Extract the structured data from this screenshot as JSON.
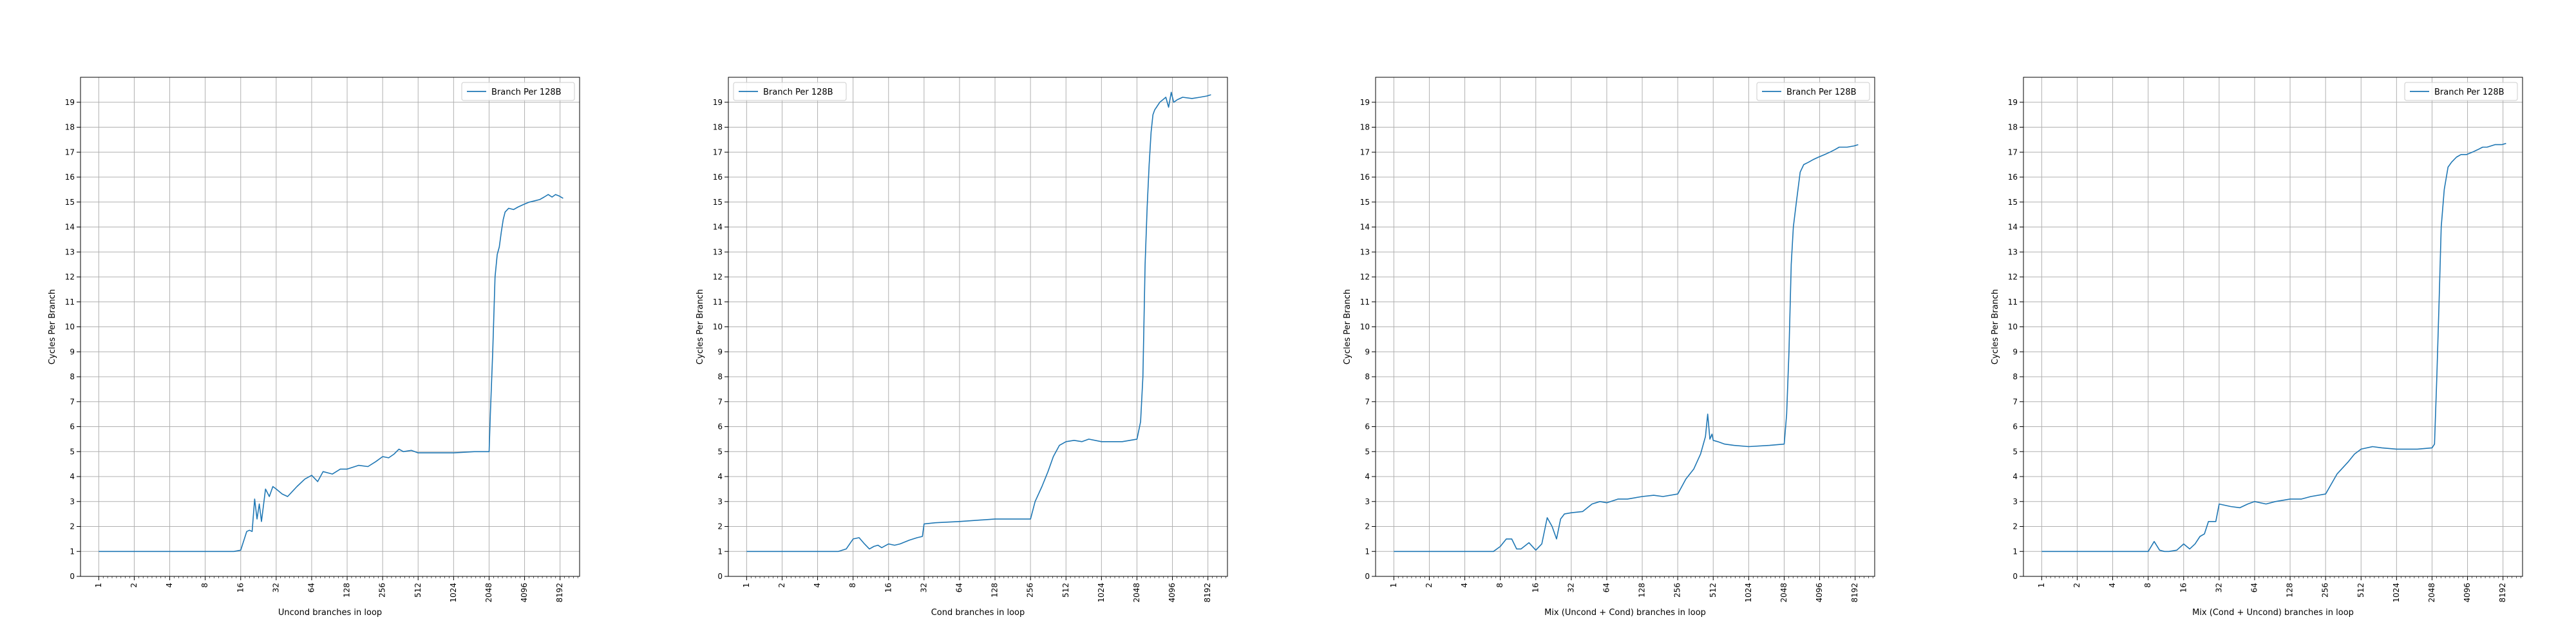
{
  "figure": {
    "background": "#ffffff",
    "line_color": "#1f77b4",
    "grid_color": "#b0b0b0"
  },
  "chart_data": [
    {
      "type": "line",
      "xscale": "log2",
      "xlabel": "Uncond branches in loop",
      "ylabel": "Cycles Per Branch",
      "xticks": [
        1,
        2,
        4,
        8,
        16,
        32,
        64,
        128,
        256,
        512,
        1024,
        2048,
        4096,
        8192
      ],
      "xlim": [
        0.7,
        12000
      ],
      "ylim": [
        0,
        20
      ],
      "yticks": [
        0,
        1,
        2,
        3,
        4,
        5,
        6,
        7,
        8,
        9,
        10,
        11,
        12,
        13,
        14,
        15,
        16,
        17,
        18,
        19
      ],
      "grid": true,
      "legend_position": "top-right",
      "series": [
        {
          "name": "Branch Per 128B",
          "x": [
            1,
            8,
            14,
            16,
            18,
            19,
            20,
            21,
            22,
            23,
            24,
            26,
            28,
            30,
            32,
            36,
            40,
            48,
            56,
            64,
            72,
            80,
            96,
            112,
            128,
            160,
            192,
            224,
            256,
            288,
            320,
            352,
            384,
            448,
            512,
            640,
            768,
            1024,
            1536,
            2048,
            2100,
            2200,
            2300,
            2400,
            2500,
            2600,
            2700,
            2800,
            3000,
            3300,
            3600,
            4000,
            4500,
            5000,
            5500,
            6000,
            6500,
            7000,
            7500,
            8000,
            8700
          ],
          "y": [
            1.0,
            1.0,
            1.0,
            1.05,
            1.8,
            1.85,
            1.8,
            3.1,
            2.3,
            2.9,
            2.2,
            3.5,
            3.2,
            3.6,
            3.5,
            3.3,
            3.2,
            3.6,
            3.9,
            4.05,
            3.8,
            4.2,
            4.1,
            4.3,
            4.3,
            4.45,
            4.4,
            4.6,
            4.8,
            4.75,
            4.9,
            5.1,
            5.0,
            5.05,
            4.95,
            4.95,
            4.95,
            4.95,
            5.0,
            5.0,
            6.5,
            9.0,
            12.0,
            12.9,
            13.2,
            13.8,
            14.3,
            14.6,
            14.75,
            14.7,
            14.8,
            14.9,
            15.0,
            15.05,
            15.1,
            15.2,
            15.3,
            15.2,
            15.3,
            15.25,
            15.15
          ]
        }
      ]
    },
    {
      "type": "line",
      "xscale": "log2",
      "xlabel": "Cond branches in loop",
      "ylabel": "Cycles Per Branch",
      "xticks": [
        1,
        2,
        4,
        8,
        16,
        32,
        64,
        128,
        256,
        512,
        1024,
        2048,
        4096,
        8192
      ],
      "xlim": [
        0.7,
        12000
      ],
      "ylim": [
        0,
        20
      ],
      "yticks": [
        0,
        1,
        2,
        3,
        4,
        5,
        6,
        7,
        8,
        9,
        10,
        11,
        12,
        13,
        14,
        15,
        16,
        17,
        18,
        19
      ],
      "grid": true,
      "legend_position": "top-left",
      "series": [
        {
          "name": "Branch Per 128B",
          "x": [
            1,
            6,
            7,
            8,
            9,
            10,
            11,
            12,
            13,
            14,
            16,
            18,
            20,
            24,
            28,
            31,
            32,
            40,
            64,
            128,
            256,
            280,
            320,
            360,
            400,
            450,
            512,
            600,
            700,
            800,
            1024,
            1536,
            2048,
            2200,
            2300,
            2400,
            2500,
            2600,
            2700,
            2800,
            2900,
            3000,
            3200,
            3400,
            3600,
            3800,
            4000,
            4200,
            4500,
            5000,
            6000,
            7000,
            8000,
            8700
          ],
          "y": [
            1.0,
            1.0,
            1.1,
            1.5,
            1.55,
            1.3,
            1.1,
            1.2,
            1.25,
            1.15,
            1.3,
            1.25,
            1.3,
            1.45,
            1.55,
            1.6,
            2.1,
            2.15,
            2.2,
            2.3,
            2.3,
            3.0,
            3.6,
            4.2,
            4.8,
            5.25,
            5.4,
            5.45,
            5.4,
            5.5,
            5.4,
            5.4,
            5.5,
            6.2,
            8.0,
            12.5,
            14.8,
            16.5,
            17.8,
            18.5,
            18.7,
            18.8,
            19.0,
            19.1,
            19.2,
            18.8,
            19.4,
            19.0,
            19.1,
            19.2,
            19.15,
            19.2,
            19.25,
            19.3
          ]
        }
      ]
    },
    {
      "type": "line",
      "xscale": "log2",
      "xlabel": "Mix (Uncond + Cond) branches in loop",
      "ylabel": "Cycles Per Branch",
      "xticks": [
        1,
        2,
        4,
        8,
        16,
        32,
        64,
        128,
        256,
        512,
        1024,
        2048,
        4096,
        8192
      ],
      "xlim": [
        0.7,
        12000
      ],
      "ylim": [
        0,
        20
      ],
      "yticks": [
        0,
        1,
        2,
        3,
        4,
        5,
        6,
        7,
        8,
        9,
        10,
        11,
        12,
        13,
        14,
        15,
        16,
        17,
        18,
        19
      ],
      "grid": true,
      "legend_position": "top-right",
      "series": [
        {
          "name": "Branch Per 128B",
          "x": [
            1,
            7,
            8,
            9,
            10,
            11,
            12,
            14,
            16,
            18,
            20,
            22,
            24,
            26,
            28,
            32,
            40,
            48,
            56,
            64,
            80,
            96,
            128,
            160,
            192,
            256,
            300,
            350,
            400,
            440,
            460,
            480,
            500,
            512,
            560,
            640,
            768,
            1024,
            1536,
            2048,
            2150,
            2250,
            2350,
            2450,
            2600,
            2800,
            3000,
            3300,
            3600,
            4000,
            4500,
            5000,
            5500,
            6000,
            7000,
            8000,
            8700
          ],
          "y": [
            1.0,
            1.0,
            1.2,
            1.5,
            1.5,
            1.1,
            1.1,
            1.35,
            1.05,
            1.3,
            2.35,
            2.0,
            1.5,
            2.3,
            2.5,
            2.55,
            2.6,
            2.9,
            3.0,
            2.95,
            3.1,
            3.1,
            3.2,
            3.25,
            3.2,
            3.3,
            3.9,
            4.3,
            4.9,
            5.6,
            6.5,
            5.5,
            5.7,
            5.45,
            5.4,
            5.3,
            5.25,
            5.2,
            5.25,
            5.3,
            6.5,
            9.0,
            12.5,
            14.0,
            15.0,
            16.2,
            16.5,
            16.6,
            16.7,
            16.8,
            16.9,
            17.0,
            17.1,
            17.2,
            17.2,
            17.25,
            17.3
          ]
        }
      ]
    },
    {
      "type": "line",
      "xscale": "log2",
      "xlabel": "Mix (Cond + Uncond) branches in loop",
      "ylabel": "Cycles Per Branch",
      "xticks": [
        1,
        2,
        4,
        8,
        16,
        32,
        64,
        128,
        256,
        512,
        1024,
        2048,
        4096,
        8192
      ],
      "xlim": [
        0.7,
        12000
      ],
      "ylim": [
        0,
        20
      ],
      "yticks": [
        0,
        1,
        2,
        3,
        4,
        5,
        6,
        7,
        8,
        9,
        10,
        11,
        12,
        13,
        14,
        15,
        16,
        17,
        18,
        19
      ],
      "grid": true,
      "legend_position": "top-right",
      "series": [
        {
          "name": "Branch Per 128B",
          "x": [
            1,
            8,
            9,
            10,
            11,
            12,
            14,
            16,
            18,
            20,
            22,
            24,
            26,
            28,
            30,
            32,
            40,
            48,
            56,
            64,
            80,
            96,
            128,
            160,
            192,
            256,
            320,
            400,
            450,
            512,
            640,
            768,
            1024,
            1536,
            2048,
            2150,
            2250,
            2350,
            2450,
            2600,
            2800,
            3000,
            3300,
            3600,
            4000,
            4500,
            5000,
            5500,
            6000,
            7000,
            8000,
            8700
          ],
          "y": [
            1.0,
            1.0,
            1.4,
            1.05,
            1.0,
            1.0,
            1.05,
            1.3,
            1.1,
            1.3,
            1.6,
            1.7,
            2.2,
            2.2,
            2.2,
            2.9,
            2.8,
            2.75,
            2.9,
            3.0,
            2.9,
            3.0,
            3.1,
            3.1,
            3.2,
            3.3,
            4.1,
            4.6,
            4.9,
            5.1,
            5.2,
            5.15,
            5.1,
            5.1,
            5.15,
            5.3,
            8.0,
            11.0,
            14.0,
            15.5,
            16.4,
            16.6,
            16.8,
            16.9,
            16.9,
            17.0,
            17.1,
            17.2,
            17.2,
            17.3,
            17.3,
            17.35
          ]
        }
      ]
    }
  ]
}
